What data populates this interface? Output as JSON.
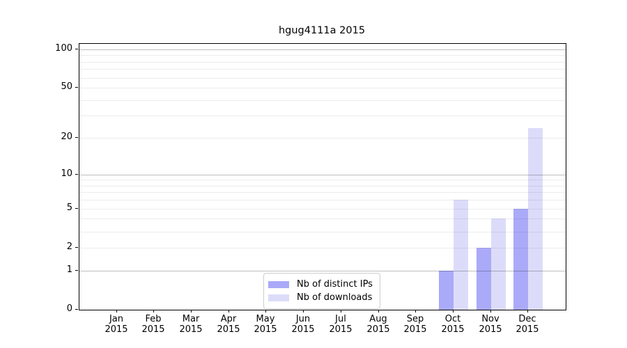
{
  "figure": {
    "title": "hgug4111a 2015"
  },
  "chart_data": {
    "type": "bar",
    "title": "hgug4111a 2015",
    "x_months": [
      "Jan",
      "Feb",
      "Mar",
      "Apr",
      "May",
      "Jun",
      "Jul",
      "Aug",
      "Sep",
      "Oct",
      "Nov",
      "Dec"
    ],
    "x_year": "2015",
    "series": [
      {
        "name": "Nb of distinct IPs",
        "color": "#aaaaf8",
        "values": [
          0,
          0,
          0,
          0,
          0,
          0,
          0,
          0,
          0,
          1,
          2,
          5
        ]
      },
      {
        "name": "Nb of downloads",
        "color": "#dcdcfa",
        "values": [
          0,
          0,
          0,
          0,
          0,
          0,
          0,
          0,
          0,
          6,
          4,
          24
        ]
      }
    ],
    "yscale": "log1p",
    "ylim": [
      0,
      110
    ],
    "ytick_labels": [
      0,
      1,
      2,
      5,
      10,
      20,
      50,
      100
    ],
    "grid_major": [
      1,
      10,
      100
    ],
    "grid_minor": [
      2,
      3,
      4,
      5,
      6,
      7,
      8,
      9,
      20,
      30,
      40,
      50,
      60,
      70,
      80,
      90
    ],
    "grid_on": true,
    "legend_position": "lower-center"
  },
  "legend": {
    "items": [
      {
        "label": "Nb of distinct IPs",
        "color": "#aaaaf8"
      },
      {
        "label": "Nb of downloads",
        "color": "#dcdcfa"
      }
    ]
  }
}
